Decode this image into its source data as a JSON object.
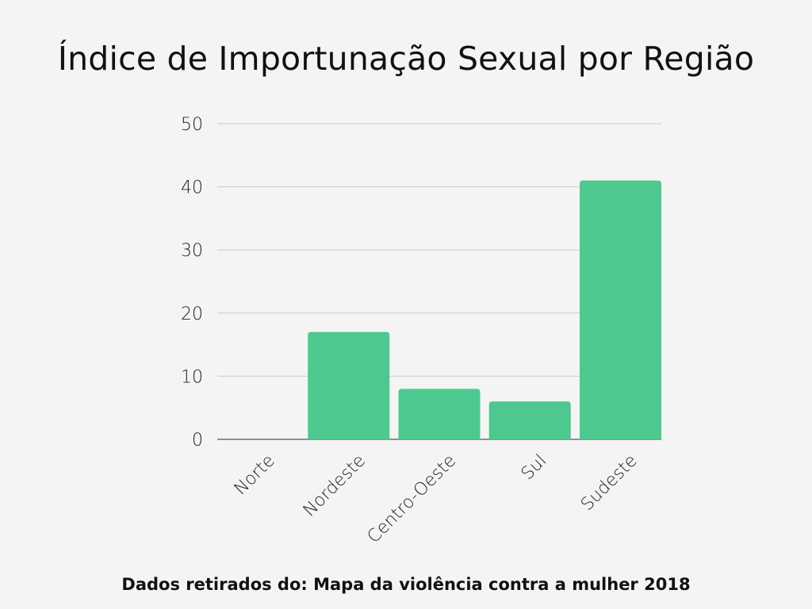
{
  "title": "Índice de Importunação Sexual por Região",
  "footnote": "Dados retirados do: Mapa da violência contra a mulher 2018",
  "colors": {
    "bar": "#4dc98f",
    "grid": "#cccccc",
    "axis": "#555555",
    "text": "#222222",
    "background": "#f4f4f4"
  },
  "chart_data": {
    "type": "bar",
    "title": "Índice de Importunação Sexual por Região",
    "xlabel": "",
    "ylabel": "",
    "categories": [
      "Norte",
      "Nordeste",
      "Centro-Oeste",
      "Sul",
      "Sudeste"
    ],
    "values": [
      0,
      17,
      8,
      6,
      41
    ],
    "ylim": [
      0,
      50
    ],
    "yticks": [
      "0",
      "10",
      "20",
      "30",
      "40",
      "50"
    ],
    "grid": true,
    "legend": "none"
  }
}
